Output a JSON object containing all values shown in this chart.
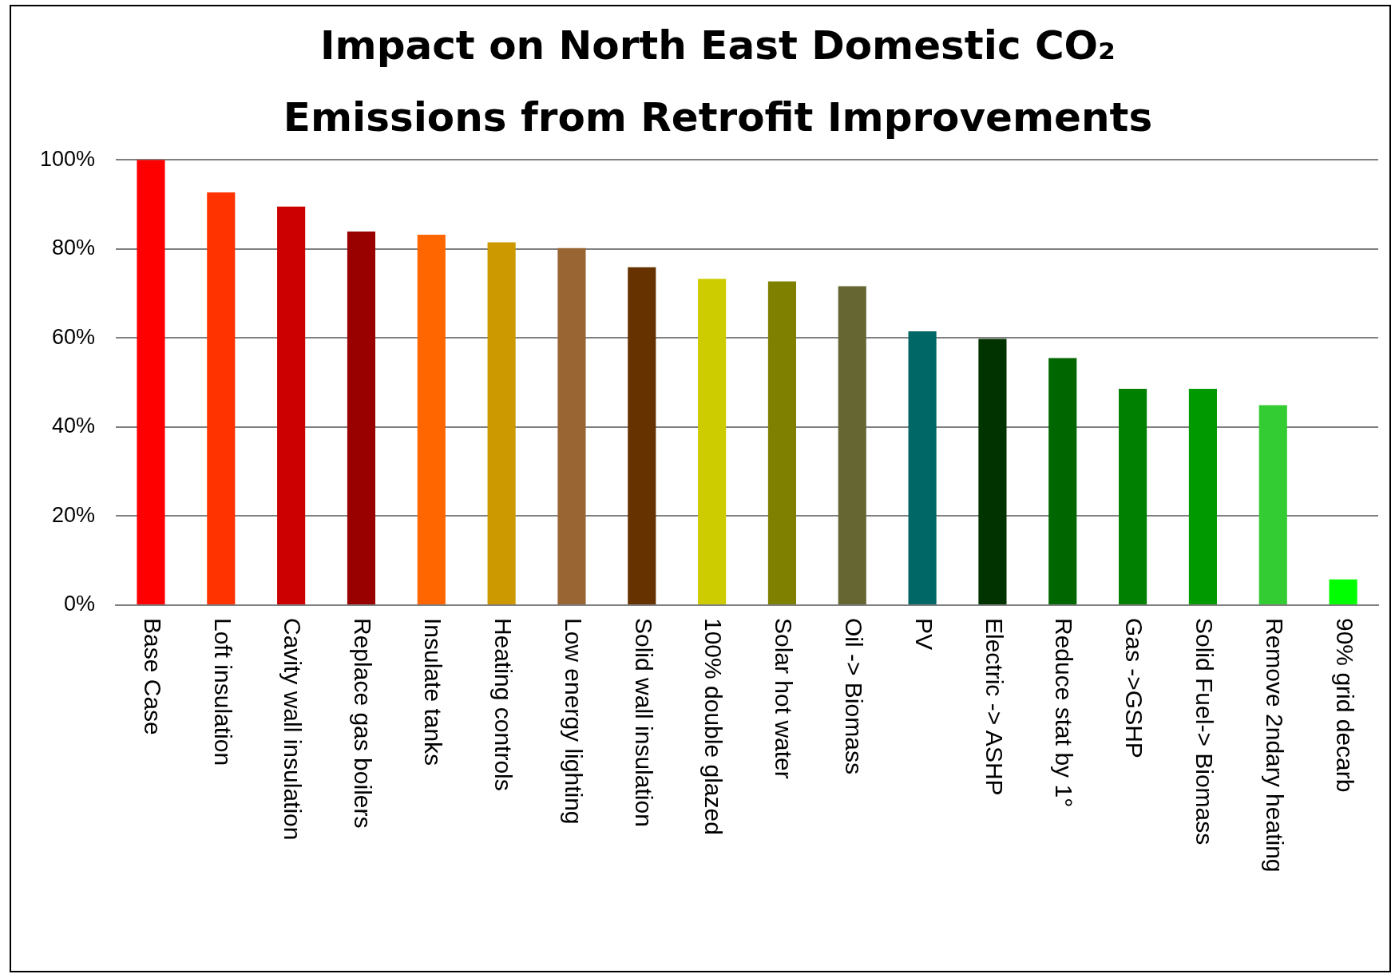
{
  "chart_data": {
    "type": "bar",
    "title": "Impact on North East Domestic CO₂ Emissions from Retrofit Improvements",
    "categories": [
      "Base Case",
      "Loft insulation",
      "Cavity wall insulation",
      "Replace gas boilers",
      "Insulate tanks",
      "Heating controls",
      "Low energy lighting",
      "Solid wall insulation",
      "100% double glazed",
      "Solar hot water",
      "Oil -> Biomass",
      "PV",
      "Electric -> ASHP",
      "Reduce stat by 1°",
      "Gas ->GSHP",
      "Solid Fuel-> Biomass",
      "Remove 2ndary heating",
      "90% grid decarb"
    ],
    "values": [
      100,
      92.7,
      89.5,
      83.9,
      83.2,
      81.5,
      80.2,
      75.9,
      73.3,
      72.7,
      71.6,
      61.5,
      59.8,
      55.5,
      48.6,
      48.6,
      44.9,
      5.8
    ],
    "colors": [
      "#ff0000",
      "#ff3300",
      "#cc0000",
      "#990000",
      "#ff6600",
      "#cc9900",
      "#996633",
      "#663300",
      "#cccc00",
      "#808000",
      "#666633",
      "#006666",
      "#003300",
      "#006600",
      "#008000",
      "#009900",
      "#33cc33",
      "#00ff00"
    ],
    "ylim": [
      0,
      100
    ],
    "yticks": [
      {
        "value": 0,
        "label": "0%"
      },
      {
        "value": 20,
        "label": "20%"
      },
      {
        "value": 40,
        "label": "40%"
      },
      {
        "value": 60,
        "label": "60%"
      },
      {
        "value": 80,
        "label": "80%"
      },
      {
        "value": 100,
        "label": "100%"
      }
    ],
    "grid": "y"
  }
}
